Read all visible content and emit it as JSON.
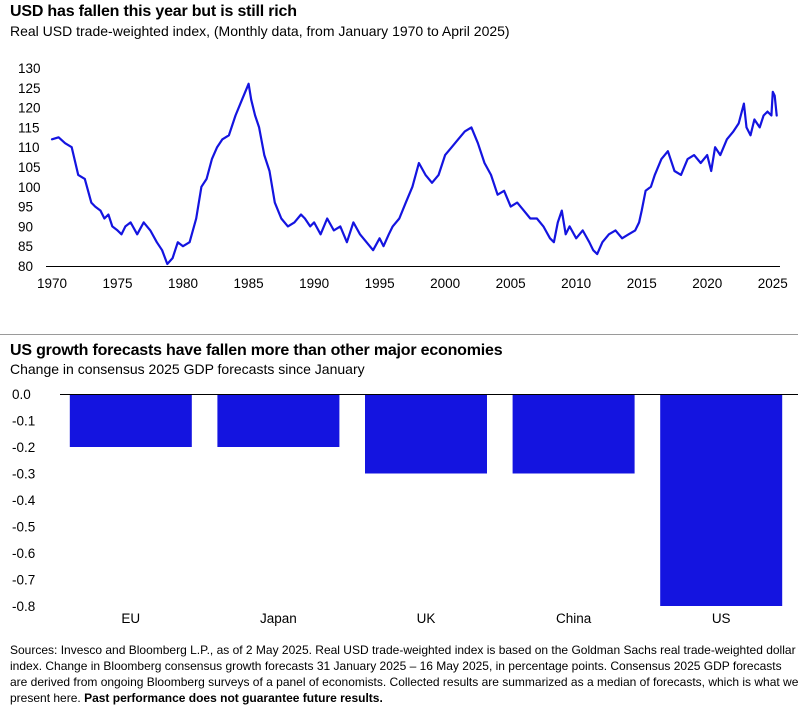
{
  "colors": {
    "series": "#1414e0",
    "axis": "#000000",
    "divider": "#9a9a9a"
  },
  "chart1": {
    "title": "USD has fallen this year but is still rich",
    "subtitle": "Real USD trade-weighted index, (Monthly data, from January 1970 to April 2025)"
  },
  "chart2": {
    "title": "US growth forecasts have fallen more than other major economies",
    "subtitle": "Change in consensus 2025 GDP forecasts since January"
  },
  "footer": {
    "text": "Sources: Invesco and Bloomberg L.P., as of 2 May 2025. Real USD trade-weighted index is based on the Goldman Sachs real trade-weighted dollar index.  Change in Bloomberg consensus growth forecasts 31 January 2025 – 16 May 2025, in percentage points. Consensus 2025 GDP forecasts are derived from ongoing Bloomberg surveys of a panel of economists. Collected results are summarized as a median of forecasts, which is what we present here.",
    "bold": "Past performance does not guarantee future results."
  },
  "chart_data": [
    {
      "type": "line",
      "title": "USD has fallen this year but is still rich",
      "subtitle": "Real USD trade-weighted index, (Monthly data, from January 1970 to April 2025)",
      "xlabel": "",
      "ylabel": "",
      "xlim": [
        1970,
        2025.4
      ],
      "ylim": [
        80,
        130
      ],
      "x_ticks": [
        1970,
        1975,
        1980,
        1985,
        1990,
        1995,
        2000,
        2005,
        2010,
        2015,
        2020,
        2025
      ],
      "y_ticks": [
        80,
        85,
        90,
        95,
        100,
        105,
        110,
        115,
        120,
        125,
        130
      ],
      "grid": false,
      "series": [
        {
          "name": "Real USD trade-weighted index",
          "x": [
            1970.0,
            1970.5,
            1971.0,
            1971.5,
            1972.0,
            1972.5,
            1973.0,
            1973.3,
            1973.7,
            1974.0,
            1974.3,
            1974.6,
            1975.0,
            1975.3,
            1975.6,
            1976.0,
            1976.5,
            1977.0,
            1977.5,
            1978.0,
            1978.4,
            1978.8,
            1979.2,
            1979.6,
            1980.0,
            1980.5,
            1981.0,
            1981.4,
            1981.8,
            1982.2,
            1982.6,
            1983.0,
            1983.5,
            1984.0,
            1984.5,
            1985.0,
            1985.2,
            1985.5,
            1985.8,
            1986.2,
            1986.6,
            1987.0,
            1987.5,
            1988.0,
            1988.5,
            1989.0,
            1989.3,
            1989.7,
            1990.0,
            1990.5,
            1991.0,
            1991.5,
            1992.0,
            1992.5,
            1993.0,
            1993.5,
            1994.0,
            1994.5,
            1995.0,
            1995.3,
            1995.7,
            1996.0,
            1996.5,
            1997.0,
            1997.5,
            1998.0,
            1998.5,
            1999.0,
            1999.5,
            2000.0,
            2000.5,
            2001.0,
            2001.5,
            2002.0,
            2002.5,
            2003.0,
            2003.5,
            2004.0,
            2004.5,
            2005.0,
            2005.5,
            2006.0,
            2006.5,
            2007.0,
            2007.5,
            2008.0,
            2008.3,
            2008.6,
            2008.9,
            2009.2,
            2009.5,
            2010.0,
            2010.5,
            2011.0,
            2011.3,
            2011.6,
            2012.0,
            2012.5,
            2013.0,
            2013.5,
            2014.0,
            2014.5,
            2014.8,
            2015.0,
            2015.3,
            2015.7,
            2016.0,
            2016.5,
            2017.0,
            2017.5,
            2018.0,
            2018.5,
            2019.0,
            2019.5,
            2020.0,
            2020.3,
            2020.6,
            2021.0,
            2021.5,
            2022.0,
            2022.4,
            2022.8,
            2023.0,
            2023.3,
            2023.6,
            2024.0,
            2024.3,
            2024.6,
            2024.9,
            2025.0,
            2025.15,
            2025.3
          ],
          "values": [
            112,
            112.5,
            111,
            110,
            103,
            102,
            96,
            95,
            94,
            92,
            93,
            90,
            89,
            88,
            90,
            91,
            88,
            91,
            89,
            86,
            84,
            80.5,
            82,
            86,
            85,
            86,
            92,
            100,
            102,
            107,
            110,
            112,
            113,
            118,
            122,
            126,
            122,
            118,
            115,
            108,
            104,
            96,
            92,
            90,
            91,
            93,
            92,
            90,
            91,
            88,
            92,
            89,
            90,
            86,
            91,
            88,
            86,
            84,
            87,
            85,
            88,
            90,
            92,
            96,
            100,
            106,
            103,
            101,
            103,
            108,
            110,
            112,
            114,
            115,
            111,
            106,
            103,
            98,
            99,
            95,
            96,
            94,
            92,
            92,
            90,
            87,
            86,
            91,
            94,
            88,
            90,
            87,
            89,
            86,
            84,
            83,
            86,
            88,
            89,
            87,
            88,
            89,
            91,
            94,
            99,
            100,
            103,
            107,
            109,
            104,
            103,
            107,
            108,
            106,
            108,
            104,
            110,
            108,
            112,
            114,
            116,
            121,
            115,
            113,
            117,
            115,
            118,
            119,
            118,
            124,
            123,
            118
          ]
        }
      ]
    },
    {
      "type": "bar",
      "title": "US growth forecasts have fallen more than other major economies",
      "subtitle": "Change in consensus 2025 GDP forecasts since January",
      "xlabel": "",
      "ylabel": "",
      "categories": [
        "EU",
        "Japan",
        "UK",
        "China",
        "US"
      ],
      "values": [
        -0.2,
        -0.2,
        -0.3,
        -0.3,
        -0.8
      ],
      "ylim": [
        -0.8,
        0.0
      ],
      "y_ticks": [
        0.0,
        -0.1,
        -0.2,
        -0.3,
        -0.4,
        -0.5,
        -0.6,
        -0.7,
        -0.8
      ],
      "y_tick_labels": [
        "0.0",
        "-0.1",
        "-0.2",
        "-0.3",
        "-0.4",
        "-0.5",
        "-0.6",
        "-0.7",
        "-0.8"
      ],
      "grid": false
    }
  ]
}
